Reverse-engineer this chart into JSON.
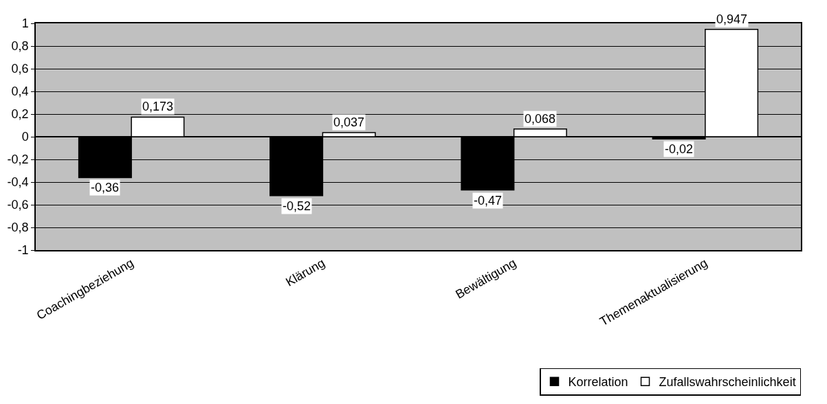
{
  "chart_data": {
    "type": "bar",
    "categories": [
      "Coachingbeziehung",
      "Klärung",
      "Bewältigung",
      "Themenaktualisierung"
    ],
    "series": [
      {
        "name": "Korrelation",
        "color": "#000000",
        "values": [
          -0.36,
          -0.52,
          -0.47,
          -0.02
        ],
        "value_labels": [
          "-0,36",
          "-0,52",
          "-0,47",
          "-0,02"
        ]
      },
      {
        "name": "Zufallswahrscheinlichkeit",
        "color": "#ffffff",
        "values": [
          0.173,
          0.037,
          0.068,
          0.947
        ],
        "value_labels": [
          "0,173",
          "0,037",
          "0,068",
          "0,947"
        ]
      }
    ],
    "ylim": [
      -1,
      1
    ],
    "yticks": [
      -1,
      {
        "value": -0.8,
        "label": "-0,8"
      },
      {
        "value": -0.6,
        "label": "-0,6"
      },
      {
        "value": -0.4,
        "label": "-0,4"
      },
      {
        "value": -0.2,
        "label": "-0,2"
      },
      0,
      {
        "value": 0.2,
        "label": "0,2"
      },
      {
        "value": 0.4,
        "label": "0,4"
      },
      {
        "value": 0.6,
        "label": "0,6"
      },
      {
        "value": 0.8,
        "label": "0,8"
      },
      1
    ],
    "grid": "y",
    "legend": "bottom right"
  }
}
